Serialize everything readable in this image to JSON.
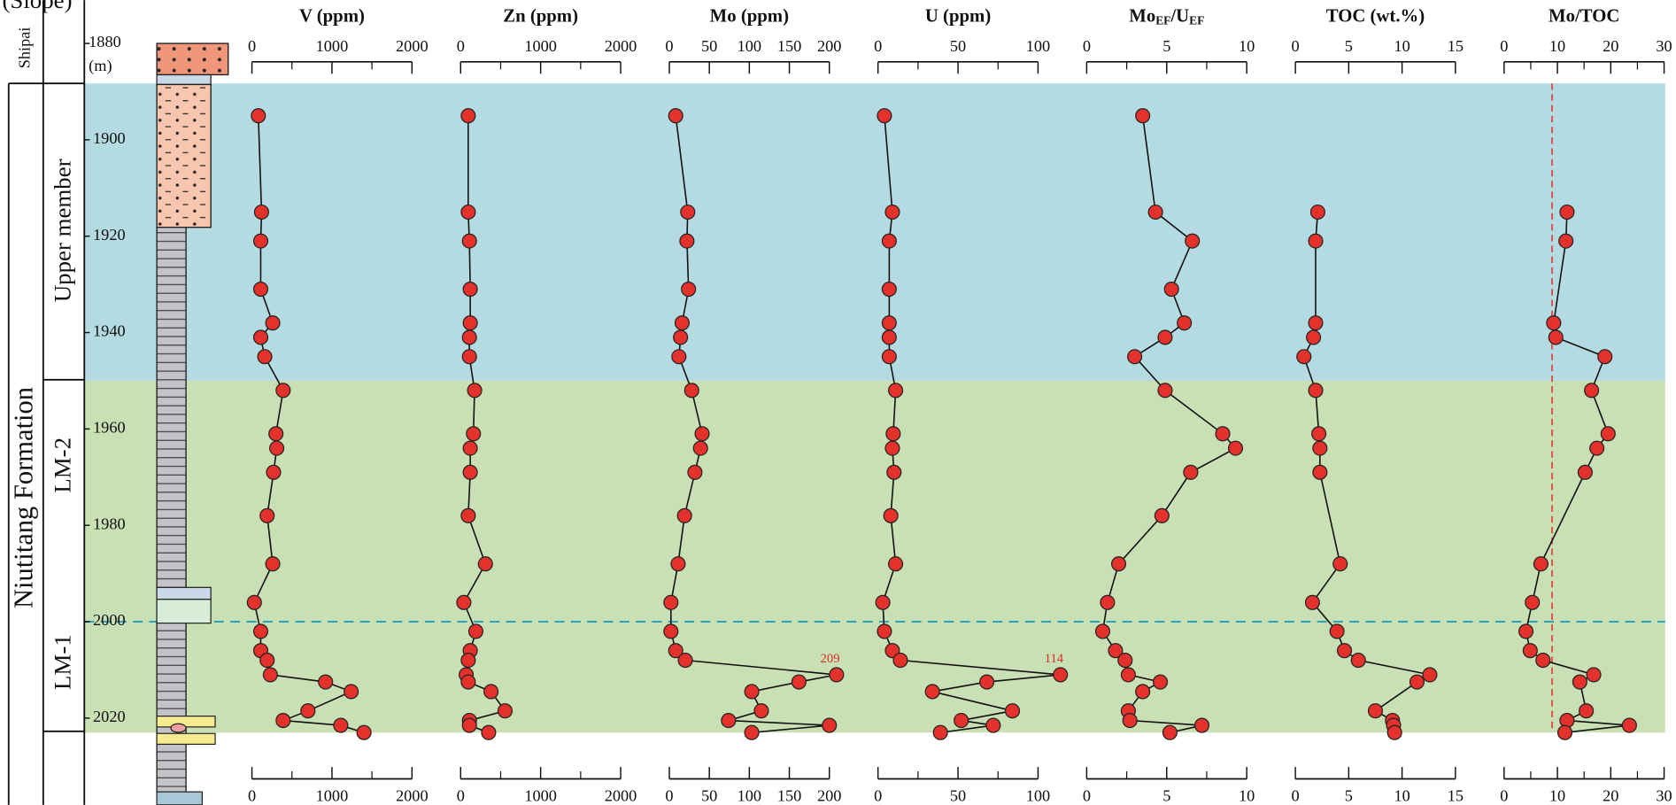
{
  "column_labels": {
    "section": "(Slope)",
    "shipai": "Shipai",
    "formation": "Niutitang Formation",
    "upper": "Upper member",
    "lm2": "LM-2",
    "lm1": "LM-1"
  },
  "chart_data": {
    "type": "depth-profile",
    "depth_unit": "(m)",
    "ylim": [
      1880,
      2038
    ],
    "yticks": [
      1880,
      1900,
      1920,
      1940,
      1960,
      1980,
      2000,
      2020
    ],
    "bands": [
      {
        "from": 1888.3,
        "to": 1950,
        "color": "#b4dbe2"
      },
      {
        "from": 1950,
        "to": 2023,
        "color": "#c9dfb4"
      }
    ],
    "hlines": [
      {
        "value": 2000,
        "color": "#2aa3bf"
      }
    ],
    "marker_color": "#e3312b",
    "panels": [
      {
        "title": "V (ppm)",
        "xlim": [
          0,
          2000
        ],
        "xticks": [
          0,
          1000,
          2000
        ],
        "minor_xticks": [
          500,
          1500
        ],
        "depths": [
          1895,
          1915,
          1921,
          1931,
          1938,
          1941,
          1945,
          1952,
          1961,
          1964,
          1969,
          1978,
          1988,
          1996,
          2002,
          2006,
          2008,
          2011,
          2012.5,
          2014.5,
          2018.5,
          2020.5,
          2021.5,
          2023
        ],
        "values": [
          80,
          120,
          110,
          110,
          260,
          110,
          160,
          390,
          300,
          310,
          270,
          190,
          260,
          30,
          110,
          110,
          190,
          230,
          920,
          1240,
          700,
          390,
          1110,
          1400
        ]
      },
      {
        "title": "Zn (ppm)",
        "xlim": [
          0,
          2000
        ],
        "xticks": [
          0,
          1000,
          2000
        ],
        "minor_xticks": [
          500,
          1500
        ],
        "depths": [
          1895,
          1915,
          1921,
          1931,
          1938,
          1941,
          1945,
          1952,
          1961,
          1964,
          1969,
          1978,
          1988,
          1996,
          2002,
          2006,
          2008,
          2011,
          2012.5,
          2014.5,
          2018.5,
          2020.5,
          2021.5,
          2023
        ],
        "values": [
          95,
          95,
          110,
          120,
          120,
          110,
          110,
          175,
          160,
          120,
          120,
          95,
          310,
          40,
          190,
          120,
          95,
          70,
          95,
          380,
          555,
          110,
          110,
          350
        ]
      },
      {
        "title": "Mo (ppm)",
        "xlim": [
          0,
          200
        ],
        "xticks": [
          0,
          50,
          100,
          150,
          200
        ],
        "minor_xticks": [],
        "depths": [
          1895,
          1915,
          1921,
          1931,
          1938,
          1941,
          1945,
          1952,
          1961,
          1964,
          1969,
          1978,
          1988,
          1996,
          2002,
          2006,
          2008,
          2011,
          2012.5,
          2014.5,
          2018.5,
          2020.5,
          2021.5,
          2023
        ],
        "values": [
          8,
          23,
          22,
          24,
          16,
          14,
          12,
          28,
          41,
          39,
          32,
          19,
          11,
          2,
          2,
          8,
          20,
          209,
          162,
          103,
          115,
          74,
          200,
          103
        ],
        "value_labels": [
          null,
          null,
          null,
          null,
          null,
          null,
          null,
          null,
          null,
          null,
          null,
          null,
          null,
          null,
          null,
          null,
          null,
          "209",
          null,
          null,
          null,
          null,
          null,
          null
        ]
      },
      {
        "title": "U (ppm)",
        "xlim": [
          0,
          100
        ],
        "xticks": [
          0,
          50,
          100
        ],
        "minor_xticks": [
          25,
          75
        ],
        "depths": [
          1895,
          1915,
          1921,
          1931,
          1938,
          1941,
          1945,
          1952,
          1961,
          1964,
          1969,
          1978,
          1988,
          1996,
          2002,
          2006,
          2008,
          2011,
          2012.5,
          2014.5,
          2018.5,
          2020.5,
          2021.5,
          2023
        ],
        "values": [
          4,
          9,
          7,
          7,
          7,
          7,
          7,
          11,
          9.5,
          9,
          10,
          8,
          11,
          3,
          4,
          9,
          14,
          114,
          68,
          34,
          84,
          52,
          72,
          39
        ],
        "value_labels": [
          null,
          null,
          null,
          null,
          null,
          null,
          null,
          null,
          null,
          null,
          null,
          null,
          null,
          null,
          null,
          null,
          null,
          "114",
          null,
          null,
          null,
          null,
          null,
          null
        ]
      },
      {
        "title_parts": [
          {
            "text": "Mo"
          },
          {
            "text": "EF",
            "sub": true
          },
          {
            "text": "/U"
          },
          {
            "text": "EF",
            "sub": true
          }
        ],
        "xlim": [
          0,
          10
        ],
        "xticks": [
          0,
          5,
          10
        ],
        "minor_xticks": [
          2.5,
          7.5
        ],
        "depths": [
          1895,
          1915,
          1921,
          1931,
          1938,
          1941,
          1945,
          1952,
          1961,
          1964,
          1969,
          1978,
          1988,
          1996,
          2002,
          2006,
          2008,
          2011,
          2012.5,
          2014.5,
          2018.5,
          2020.5,
          2021.5,
          2023
        ],
        "values": [
          3.5,
          4.3,
          6.6,
          5.3,
          6.1,
          4.9,
          3.0,
          4.9,
          8.5,
          9.3,
          6.5,
          4.7,
          2.0,
          1.3,
          1.0,
          1.8,
          2.4,
          2.6,
          4.6,
          3.5,
          2.6,
          2.7,
          7.2,
          5.2
        ]
      },
      {
        "title": "TOC (wt.%)",
        "xlim": [
          0,
          15
        ],
        "xticks": [
          0,
          5,
          10,
          15
        ],
        "minor_xticks": [],
        "depths": [
          1915,
          1921,
          1938,
          1941,
          1945,
          1952,
          1961,
          1964,
          1969,
          1988,
          1996,
          2002,
          2006,
          2008,
          2011,
          2012.5,
          2018.5,
          2020.5,
          2021.5,
          2023
        ],
        "values": [
          2.1,
          1.9,
          1.9,
          1.7,
          0.8,
          1.9,
          2.2,
          2.3,
          2.3,
          4.2,
          1.6,
          3.9,
          4.6,
          5.9,
          12.6,
          11.4,
          7.5,
          9.1,
          9.2,
          9.3
        ]
      },
      {
        "title": "Mo/TOC",
        "xlim": [
          0,
          30
        ],
        "xticks": [
          0,
          10,
          20,
          30
        ],
        "minor_xticks": [
          5,
          15,
          25
        ],
        "ref_line": {
          "value": 9,
          "color": "#e0403a"
        },
        "depths": [
          1915,
          1921,
          1938,
          1941,
          1945,
          1952,
          1961,
          1964,
          1969,
          1988,
          1996,
          2002,
          2006,
          2008,
          2011,
          2012.5,
          2018.5,
          2020.5,
          2021.5,
          2023
        ],
        "values": [
          11.8,
          11.6,
          9.3,
          9.7,
          18.9,
          16.4,
          19.5,
          17.4,
          15.2,
          6.9,
          5.3,
          4.1,
          4.9,
          7.3,
          16.8,
          14.2,
          15.4,
          11.8,
          23.5,
          11.4
        ]
      }
    ]
  }
}
